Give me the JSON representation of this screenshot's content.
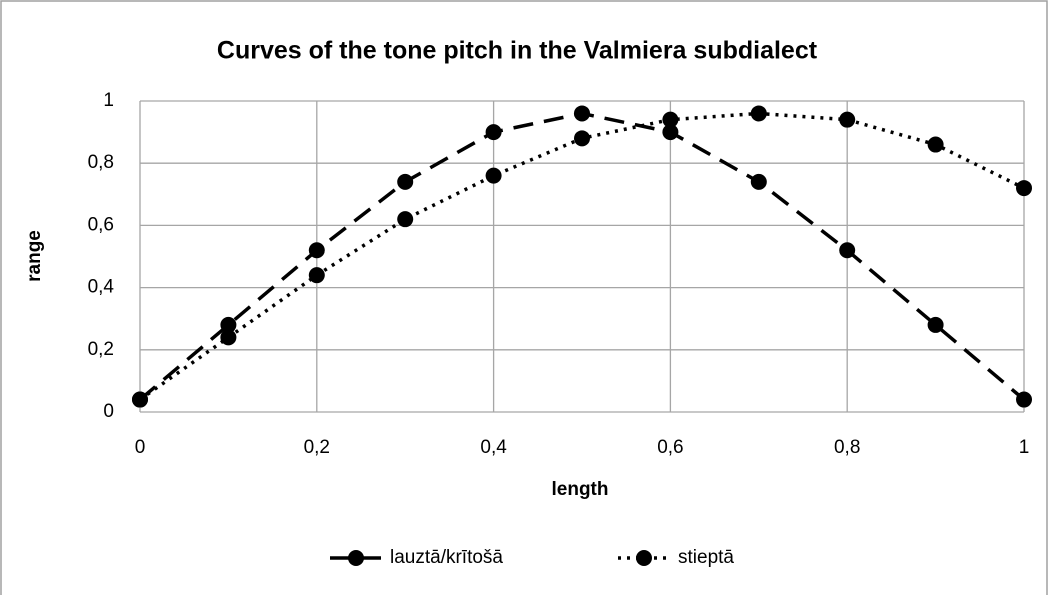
{
  "chart_data": {
    "type": "line",
    "title": "Curves of the tone pitch in the Valmiera subdialect",
    "xlabel": "length",
    "ylabel": "range",
    "x": [
      0,
      0.1,
      0.2,
      0.3,
      0.4,
      0.5,
      0.6,
      0.7,
      0.8,
      0.9,
      1
    ],
    "series": [
      {
        "name": "lauztā/krītošā",
        "color": "#000000",
        "dash": "dashed",
        "values": [
          0.04,
          0.28,
          0.52,
          0.74,
          0.9,
          0.96,
          0.9,
          0.74,
          0.52,
          0.28,
          0.04
        ]
      },
      {
        "name": "stieptā",
        "color": "#000000",
        "dash": "dotted",
        "values": [
          0.04,
          0.24,
          0.44,
          0.62,
          0.76,
          0.88,
          0.94,
          0.96,
          0.94,
          0.86,
          0.72
        ]
      }
    ],
    "xlim": [
      0,
      1
    ],
    "xticks": [
      0,
      {
        "value": 0.2,
        "label": "0,2"
      },
      {
        "value": 0.4,
        "label": "0,4"
      },
      {
        "value": 0.6,
        "label": "0,6"
      },
      {
        "value": 0.8,
        "label": "0,8"
      },
      1
    ],
    "ylim": [
      0,
      1
    ],
    "yticks": [
      0,
      {
        "value": 0.2,
        "label": "0,2"
      },
      {
        "value": 0.4,
        "label": "0,4"
      },
      {
        "value": 0.6,
        "label": "0,6"
      },
      {
        "value": 0.8,
        "label": "0,8"
      },
      1
    ],
    "grid": true,
    "legend": "bottom"
  }
}
